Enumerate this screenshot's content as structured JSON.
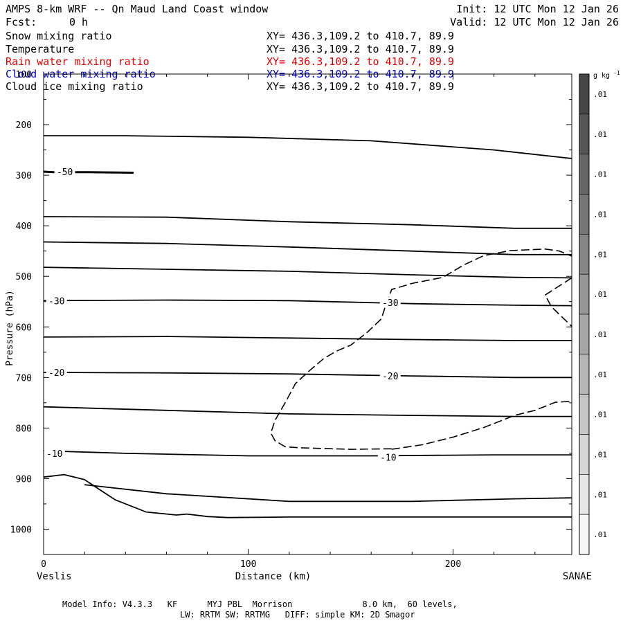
{
  "header": {
    "title": "AMPS 8-km WRF -- Qn Maud Land Coast window",
    "fcst_label": "Fcst:",
    "fcst_value": "0 h",
    "init": "Init: 12 UTC Mon 12 Jan 26",
    "valid": "Valid: 12 UTC Mon 12 Jan 26"
  },
  "fields": [
    {
      "name": "Snow mixing ratio",
      "xy": "XY= 436.3,109.2 to 410.7, 89.9",
      "color": "#000000"
    },
    {
      "name": "Temperature",
      "xy": "XY= 436.3,109.2 to 410.7, 89.9",
      "color": "#000000"
    },
    {
      "name": "Rain water mixing ratio",
      "xy": "XY= 436.3,109.2 to 410.7, 89.9",
      "color": "#e00000"
    },
    {
      "name": "Cloud water mixing ratio",
      "xy": "XY= 436.3,109.2 to 410.7, 89.9",
      "color": "#0000cc"
    },
    {
      "name": "Cloud ice mixing ratio",
      "xy": "XY= 436.3,109.2 to 410.7, 89.9",
      "color": "#000000"
    }
  ],
  "footer": {
    "line1": "Model Info: V4.3.3   KF      MYJ PBL  Morrison              8.0 km,  60 levels,",
    "line2": "LW: RRTM SW: RRTMG   DIFF: simple KM: 2D Smagor"
  },
  "chart_data": {
    "type": "contour-cross-section",
    "xlabel": "Distance (km)",
    "ylabel": "Pressure (hPa)",
    "xlim": [
      0,
      258
    ],
    "ylim": [
      1050,
      100
    ],
    "x_ticks": [
      0,
      100,
      200
    ],
    "y_ticks": [
      100,
      200,
      300,
      400,
      500,
      600,
      700,
      800,
      900,
      1000
    ],
    "x_endpoints": {
      "left": "Veslis",
      "right": "SANAE"
    },
    "colorbar": {
      "unit": "g kg",
      "unit_exp": "-1",
      "labels": [
        ".01",
        ".01",
        ".01",
        ".01",
        ".01",
        ".01",
        ".01",
        ".01",
        ".01",
        ".01",
        ".01",
        ".01"
      ]
    },
    "isotherms": [
      {
        "points": [
          [
            0,
            222
          ],
          [
            40,
            222
          ],
          [
            100,
            225
          ],
          [
            160,
            232
          ],
          [
            220,
            250
          ],
          [
            258,
            267
          ]
        ]
      },
      {
        "points": [
          [
            0,
            382
          ],
          [
            60,
            383
          ],
          [
            120,
            392
          ],
          [
            180,
            398
          ],
          [
            230,
            405
          ],
          [
            258,
            405
          ]
        ]
      },
      {
        "points": [
          [
            0,
            432
          ],
          [
            60,
            435
          ],
          [
            120,
            442
          ],
          [
            180,
            450
          ],
          [
            230,
            457
          ],
          [
            258,
            457
          ]
        ]
      },
      {
        "points": [
          [
            0,
            482
          ],
          [
            60,
            486
          ],
          [
            120,
            490
          ],
          [
            180,
            497
          ],
          [
            230,
            502
          ],
          [
            258,
            503
          ]
        ]
      },
      {
        "points": [
          [
            0,
            548
          ],
          [
            60,
            547
          ],
          [
            120,
            548
          ],
          [
            180,
            554
          ],
          [
            230,
            557
          ],
          [
            258,
            558
          ]
        ]
      },
      {
        "points": [
          [
            0,
            620
          ],
          [
            60,
            619
          ],
          [
            120,
            622
          ],
          [
            180,
            625
          ],
          [
            230,
            627
          ],
          [
            258,
            627
          ]
        ]
      },
      {
        "points": [
          [
            0,
            690
          ],
          [
            60,
            691
          ],
          [
            120,
            693
          ],
          [
            180,
            697
          ],
          [
            230,
            700
          ],
          [
            258,
            700
          ]
        ]
      },
      {
        "points": [
          [
            0,
            758
          ],
          [
            60,
            765
          ],
          [
            120,
            772
          ],
          [
            180,
            775
          ],
          [
            230,
            777
          ],
          [
            258,
            777
          ]
        ]
      },
      {
        "points": [
          [
            0,
            845
          ],
          [
            40,
            850
          ],
          [
            100,
            855
          ],
          [
            160,
            855
          ],
          [
            220,
            853
          ],
          [
            258,
            853
          ]
        ]
      },
      {
        "points": [
          [
            20,
            912
          ],
          [
            60,
            930
          ],
          [
            120,
            945
          ],
          [
            180,
            945
          ],
          [
            230,
            940
          ],
          [
            258,
            938
          ]
        ]
      }
    ],
    "isotherm_fragments": [
      {
        "points": [
          [
            0,
            293
          ],
          [
            5,
            294
          ],
          [
            20,
            294
          ],
          [
            44,
            295
          ]
        ],
        "thick": true
      }
    ],
    "isotherm_labels": [
      {
        "text": "-50",
        "x": 10,
        "p": 293
      },
      {
        "text": "-30",
        "x": 6,
        "p": 548
      },
      {
        "text": "-30",
        "x": 169,
        "p": 552
      },
      {
        "text": "-20",
        "x": 6,
        "p": 690
      },
      {
        "text": "-20",
        "x": 169,
        "p": 697
      },
      {
        "text": "-10",
        "x": 5,
        "p": 850
      },
      {
        "text": "-10",
        "x": 168,
        "p": 858
      }
    ],
    "terrain": {
      "points": [
        [
          0,
          897
        ],
        [
          10,
          892
        ],
        [
          20,
          902
        ],
        [
          35,
          942
        ],
        [
          50,
          966
        ],
        [
          65,
          972
        ],
        [
          70,
          970
        ],
        [
          80,
          975
        ],
        [
          90,
          977
        ],
        [
          120,
          976
        ],
        [
          180,
          976
        ],
        [
          258,
          976
        ]
      ]
    },
    "cloud_ice_contour": {
      "dashed": true,
      "points": [
        [
          170,
          841
        ],
        [
          150,
          842
        ],
        [
          125,
          839
        ],
        [
          118,
          837
        ],
        [
          113,
          825
        ],
        [
          111,
          810
        ],
        [
          113,
          785
        ],
        [
          118,
          750
        ],
        [
          123,
          712
        ],
        [
          130,
          686
        ],
        [
          137,
          662
        ],
        [
          143,
          648
        ],
        [
          150,
          636
        ],
        [
          158,
          611
        ],
        [
          165,
          584
        ],
        [
          167,
          558
        ],
        [
          170,
          526
        ],
        [
          180,
          514
        ],
        [
          195,
          502
        ],
        [
          205,
          478
        ],
        [
          215,
          459
        ],
        [
          228,
          449
        ],
        [
          245,
          446
        ],
        [
          252,
          450
        ],
        [
          258,
          460
        ]
      ]
    },
    "cloud_ice_contour_2": {
      "dashed": true,
      "points": [
        [
          170,
          842
        ],
        [
          185,
          833
        ],
        [
          200,
          818
        ],
        [
          215,
          799
        ],
        [
          230,
          775
        ],
        [
          240,
          765
        ],
        [
          250,
          749
        ],
        [
          258,
          747
        ]
      ]
    },
    "cloud_ice_contour_3": {
      "dashed": true,
      "points": [
        [
          258,
          503
        ],
        [
          245,
          537
        ],
        [
          248,
          560
        ],
        [
          258,
          599
        ]
      ]
    }
  }
}
